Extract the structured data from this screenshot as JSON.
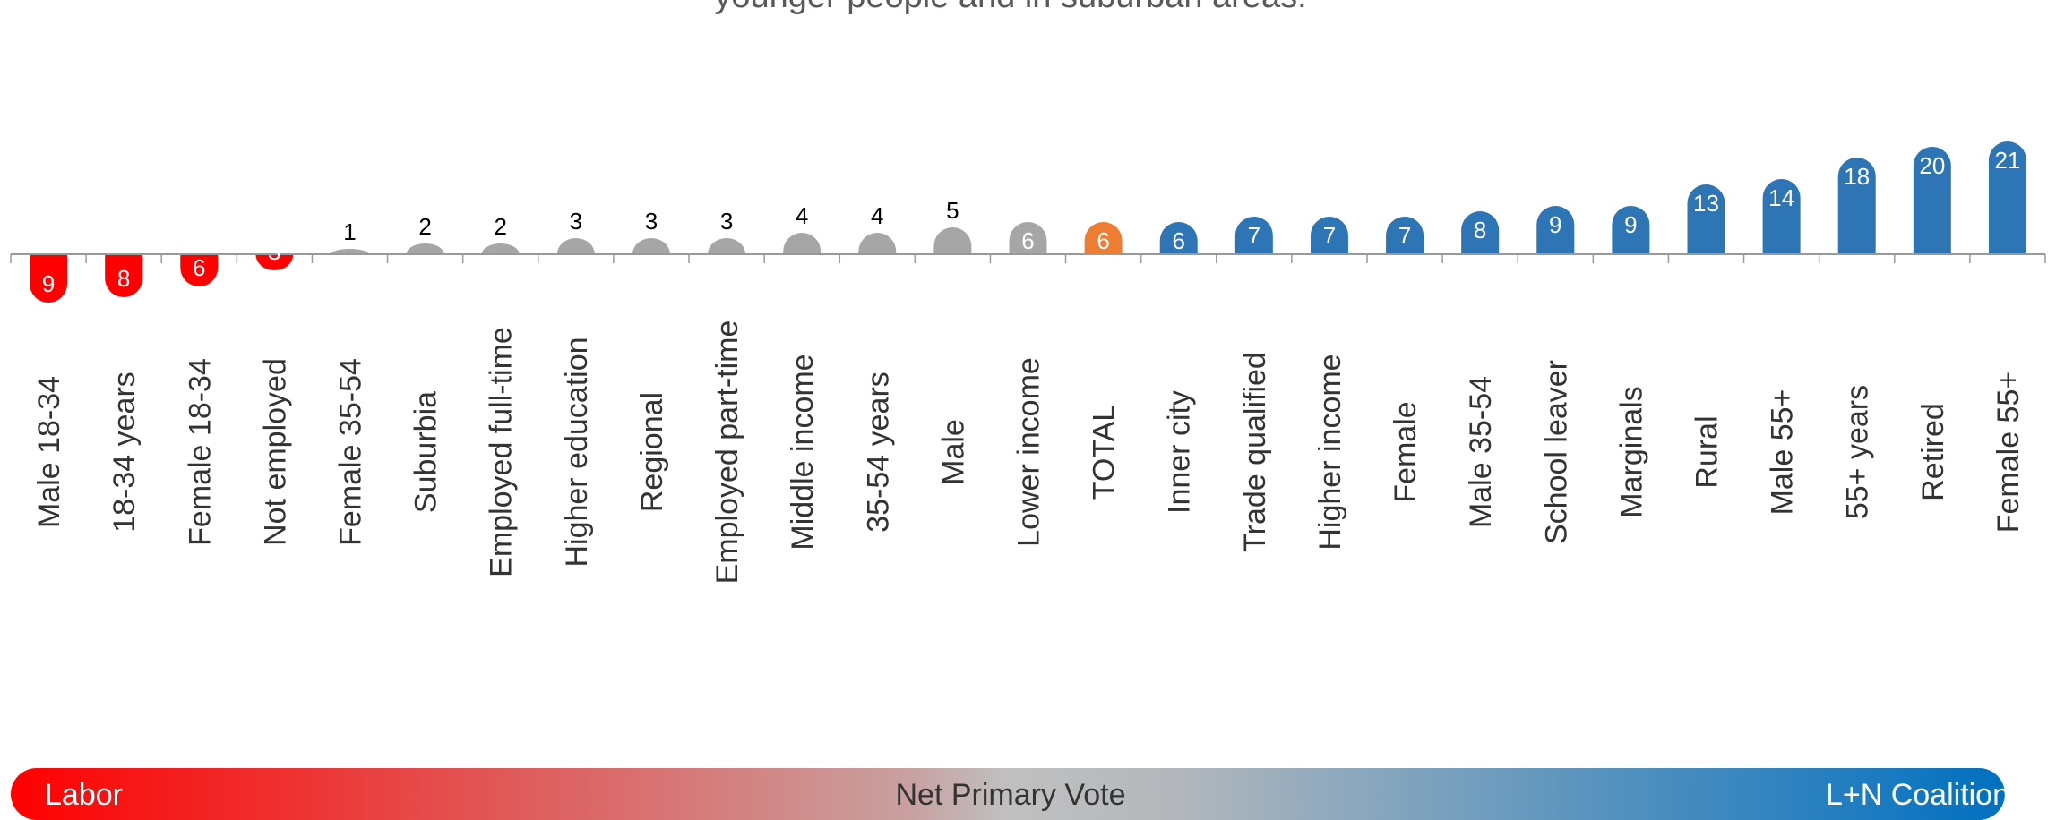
{
  "subtitle": "younger people and in suburban areas.",
  "colors": {
    "labor": "#ff0000",
    "neutral": "#a6a6a6",
    "total": "#ed7d31",
    "coalition": "#2e75b6",
    "axis": "#999999"
  },
  "chart_data": {
    "type": "bar",
    "title": "",
    "categories": [
      "Male 18-34",
      "18-34 years",
      "Female 18-34",
      "Not employed",
      "Female 35-54",
      "Suburbia",
      "Employed full-time",
      "Higher education",
      "Regional",
      "Employed part-time",
      "Middle income",
      "35-54 years",
      "Male",
      "Lower income",
      "TOTAL",
      "Inner city",
      "Trade qualified",
      "Higher income",
      "Female",
      "Male 35-54",
      "School leaver",
      "Marginals",
      "Rural",
      "Male 55+",
      "55+ years",
      "Retired",
      "Female 55+"
    ],
    "values": [
      -9,
      -8,
      -6,
      -3,
      1,
      2,
      2,
      3,
      3,
      3,
      4,
      4,
      5,
      6,
      6,
      6,
      7,
      7,
      7,
      8,
      9,
      9,
      13,
      14,
      18,
      20,
      21
    ],
    "bar_groups": [
      "labor",
      "labor",
      "labor",
      "labor",
      "neutral",
      "neutral",
      "neutral",
      "neutral",
      "neutral",
      "neutral",
      "neutral",
      "neutral",
      "neutral",
      "neutral",
      "total",
      "coalition",
      "coalition",
      "coalition",
      "coalition",
      "coalition",
      "coalition",
      "coalition",
      "coalition",
      "coalition",
      "coalition",
      "coalition",
      "coalition"
    ],
    "xlabel": "",
    "ylabel": "",
    "ylim": [
      -9,
      21
    ],
    "grid": false,
    "legend": {
      "left": "Labor",
      "center": "Net Primary Vote",
      "right": "L+N Coalition"
    }
  }
}
